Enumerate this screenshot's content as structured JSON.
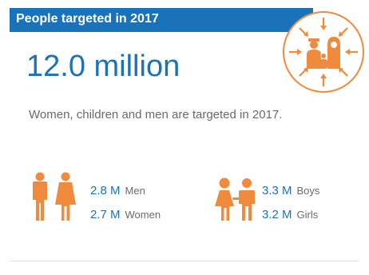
{
  "header": {
    "title": "People targeted in 2017"
  },
  "total": {
    "value": "12.0 million"
  },
  "description": "Women, children and men are targeted in 2017.",
  "stats": {
    "men": {
      "value": "2.8 M",
      "label": "Men"
    },
    "women": {
      "value": "2.7 M",
      "label": "Women"
    },
    "boys": {
      "value": "3.3 M",
      "label": "Boys"
    },
    "girls": {
      "value": "3.2 M",
      "label": "Girls"
    }
  },
  "icons": {
    "badge": "people-targeted-icon",
    "adults": "man-woman-icon",
    "children": "boy-girl-icon"
  },
  "colors": {
    "accent_blue": "#1a72b8",
    "accent_orange": "#f08a3c",
    "text_gray": "#6a6a6a"
  }
}
